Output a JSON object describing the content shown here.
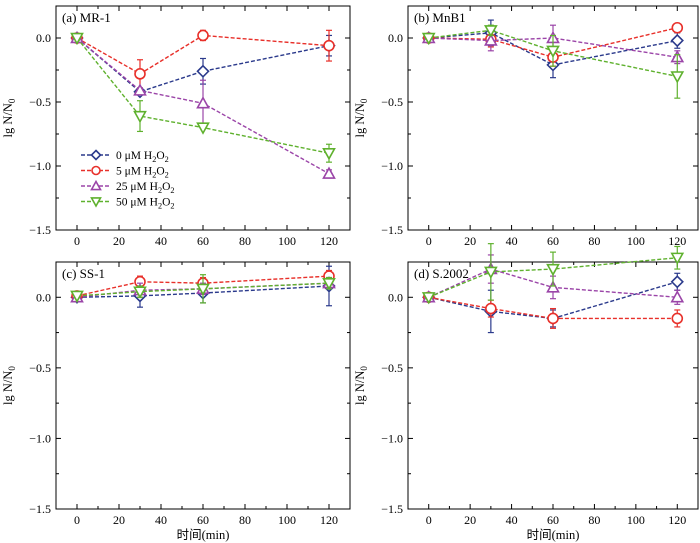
{
  "chart_data": [
    {
      "type": "line",
      "panel_label": "(a) MR-1",
      "x": [
        0,
        30,
        60,
        120
      ],
      "xlim": [
        -10,
        130
      ],
      "ylim": [
        -1.5,
        0.25
      ],
      "xticks": [
        "0",
        "20",
        "40",
        "60",
        "80",
        "100",
        "120"
      ],
      "yticks": [
        "0.0",
        "−0.5",
        "−1.0",
        "−1.5"
      ],
      "series": [
        {
          "name": "0 μM H2O2",
          "values": [
            0,
            -0.42,
            -0.26,
            -0.06
          ],
          "errors": [
            0,
            0.02,
            0.1,
            0.08
          ]
        },
        {
          "name": "5 μM H2O2",
          "values": [
            0,
            -0.28,
            0.02,
            -0.06
          ],
          "errors": [
            0,
            0.11,
            0.04,
            0.12
          ]
        },
        {
          "name": "25 μM H2O2",
          "values": [
            0,
            -0.41,
            -0.51,
            -1.06
          ],
          "errors": [
            0,
            0.02,
            0.18,
            0.03
          ]
        },
        {
          "name": "50 μM H2O2",
          "values": [
            0,
            -0.61,
            -0.7,
            -0.9
          ],
          "errors": [
            0,
            0.12,
            0,
            0.07
          ]
        }
      ]
    },
    {
      "type": "line",
      "panel_label": "(b) MnB1",
      "x": [
        0,
        30,
        60,
        120
      ],
      "xlim": [
        -10,
        130
      ],
      "ylim": [
        -1.5,
        0.25
      ],
      "xticks": [
        "0",
        "20",
        "40",
        "60",
        "80",
        "100",
        "120"
      ],
      "yticks": [
        "0.0",
        "−0.5",
        "−1.0",
        "−1.5"
      ],
      "series": [
        {
          "name": "0 μM H2O2",
          "values": [
            0,
            0.04,
            -0.21,
            -0.02
          ],
          "errors": [
            0,
            0.1,
            0.1,
            0.06
          ]
        },
        {
          "name": "5 μM H2O2",
          "values": [
            0,
            -0.01,
            -0.15,
            0.08
          ],
          "errors": [
            0,
            0.06,
            0.07,
            0.02
          ]
        },
        {
          "name": "25 μM H2O2",
          "values": [
            0,
            -0.02,
            0,
            -0.15
          ],
          "errors": [
            0,
            0.08,
            0.1,
            0.05
          ]
        },
        {
          "name": "50 μM H2O2",
          "values": [
            0,
            0.06,
            -0.1,
            -0.3
          ],
          "errors": [
            0,
            0.04,
            0.12,
            0.17
          ]
        }
      ]
    },
    {
      "type": "line",
      "panel_label": "(c) SS-1",
      "x": [
        0,
        30,
        60,
        120
      ],
      "xlim": [
        -10,
        130
      ],
      "ylim": [
        -1.5,
        0.25
      ],
      "xticks": [
        "0",
        "20",
        "40",
        "60",
        "80",
        "100",
        "120"
      ],
      "yticks": [
        "0.0",
        "−0.5",
        "−1.0",
        "−1.5"
      ],
      "series": [
        {
          "name": "0 μM H2O2",
          "values": [
            0,
            0.01,
            0.03,
            0.08
          ],
          "errors": [
            0,
            0.08,
            0.07,
            0.14
          ]
        },
        {
          "name": "5 μM H2O2",
          "values": [
            0.01,
            0.11,
            0.1,
            0.15
          ],
          "errors": [
            0,
            0.04,
            0.04,
            0.04
          ]
        },
        {
          "name": "25 μM H2O2",
          "values": [
            0,
            0.05,
            0.06,
            0.1
          ],
          "errors": [
            0,
            0.05,
            0.04,
            0.04
          ]
        },
        {
          "name": "50 μM H2O2",
          "values": [
            0.01,
            0.04,
            0.06,
            0.1
          ],
          "errors": [
            0,
            0.04,
            0.1,
            0.04
          ]
        }
      ]
    },
    {
      "type": "line",
      "panel_label": "(d) S.2002",
      "x": [
        0,
        30,
        60,
        120
      ],
      "xlim": [
        -10,
        130
      ],
      "ylim": [
        -1.5,
        0.25
      ],
      "xticks": [
        "0",
        "20",
        "40",
        "60",
        "80",
        "100",
        "120"
      ],
      "yticks": [
        "0.0",
        "−0.5",
        "−1.0",
        "−1.5"
      ],
      "series": [
        {
          "name": "0 μM H2O2",
          "values": [
            0,
            -0.1,
            -0.15,
            0.11
          ],
          "errors": [
            0,
            0.15,
            0.06,
            0.06
          ]
        },
        {
          "name": "5 μM H2O2",
          "values": [
            0,
            -0.08,
            -0.15,
            -0.15
          ],
          "errors": [
            0,
            0.06,
            0.07,
            0.06
          ]
        },
        {
          "name": "25 μM H2O2",
          "values": [
            0,
            0.2,
            0.07,
            0
          ],
          "errors": [
            0,
            0.1,
            0.08,
            0.05
          ]
        },
        {
          "name": "50 μM H2O2",
          "values": [
            0,
            0.18,
            0.2,
            0.28
          ],
          "errors": [
            0,
            0.2,
            0.12,
            0.08
          ]
        }
      ]
    }
  ],
  "series_style": [
    {
      "color": "#2b3a8c",
      "marker": "diamond"
    },
    {
      "color": "#e8302a",
      "marker": "circle"
    },
    {
      "color": "#9b45a8",
      "marker": "triangle-up"
    },
    {
      "color": "#5fb12e",
      "marker": "triangle-down"
    }
  ],
  "legend": {
    "panel": 0,
    "items": [
      "0 μM H2O2",
      "5 μM H2O2",
      "25 μM H2O2",
      "50 μM H2O2"
    ]
  },
  "axes": {
    "ylabel": "lg N/N0",
    "xlabel": "时间(min)"
  }
}
